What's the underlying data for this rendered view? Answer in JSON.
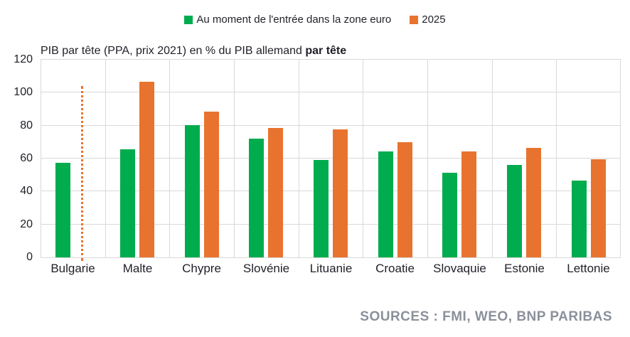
{
  "legend": {
    "series1": "Au moment de l'entrée dans la zone euro",
    "series2": "2025"
  },
  "title": {
    "regular": "PIB par tête (PPA, prix 2021) en % du PIB allemand ",
    "bold": "par tête"
  },
  "source": "SOURCES : FMI, WEO, BNP PARIBAS",
  "colors": {
    "green": "#00ac4d",
    "orange": "#e8732f",
    "grid": "#d9d9d9",
    "axis_text": "#1f1f28",
    "source_text": "#8b909b"
  },
  "chart_data": {
    "type": "bar",
    "title": "PIB par tête (PPA, prix 2021) en % du PIB allemand par tête",
    "categories": [
      "Bulgarie",
      "Malte",
      "Chypre",
      "Slovénie",
      "Lituanie",
      "Croatie",
      "Slovaquie",
      "Estonie",
      "Lettonie"
    ],
    "series": [
      {
        "name": "Au moment de l'entrée dans la zone euro",
        "color_key": "green",
        "values": [
          57.5,
          65.5,
          80.5,
          72,
          59,
          64.5,
          51.5,
          56,
          46.5
        ]
      },
      {
        "name": "2025",
        "color_key": "orange",
        "values": [
          null,
          106.5,
          88.5,
          78.5,
          77.5,
          70,
          64.5,
          66.5,
          59.5
        ]
      }
    ],
    "bulgarie_dotted_line_value": 104,
    "ylim": [
      0,
      120
    ],
    "yticks": [
      0,
      20,
      40,
      60,
      80,
      100,
      120
    ],
    "grid": true,
    "legend_position": "top-center"
  }
}
